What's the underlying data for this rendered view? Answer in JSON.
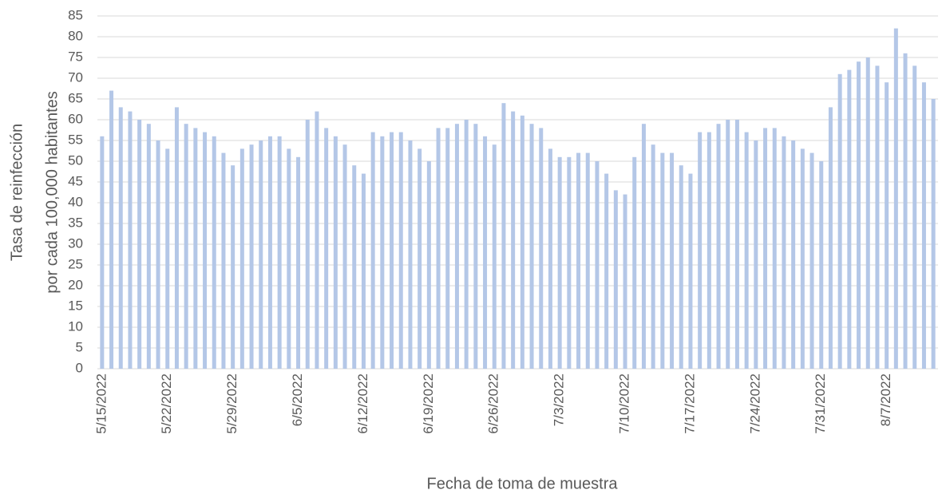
{
  "chart_data": {
    "type": "bar",
    "xlabel": "Fecha de toma de muestra",
    "ylabel": [
      "Tasa de reinfección",
      "por cada 100,000 habitantes"
    ],
    "categories": [
      "5/15/2022",
      null,
      null,
      null,
      null,
      null,
      null,
      "5/22/2022",
      null,
      null,
      null,
      null,
      null,
      null,
      "5/29/2022",
      null,
      null,
      null,
      null,
      null,
      null,
      "6/5/2022",
      null,
      null,
      null,
      null,
      null,
      null,
      "6/12/2022",
      null,
      null,
      null,
      null,
      null,
      null,
      "6/19/2022",
      null,
      null,
      null,
      null,
      null,
      null,
      "6/26/2022",
      null,
      null,
      null,
      null,
      null,
      null,
      "7/3/2022",
      null,
      null,
      null,
      null,
      null,
      null,
      "7/10/2022",
      null,
      null,
      null,
      null,
      null,
      null,
      "7/17/2022",
      null,
      null,
      null,
      null,
      null,
      null,
      "7/24/2022",
      null,
      null,
      null,
      null,
      null,
      null,
      "7/31/2022",
      null,
      null,
      null,
      null,
      null,
      null,
      "8/7/2022",
      null,
      null,
      null,
      null,
      null
    ],
    "values": [
      56,
      67,
      63,
      62,
      60,
      59,
      55,
      53,
      63,
      59,
      58,
      57,
      56,
      52,
      49,
      53,
      54,
      55,
      56,
      56,
      53,
      51,
      60,
      62,
      58,
      56,
      54,
      49,
      47,
      57,
      56,
      57,
      57,
      55,
      53,
      50,
      58,
      58,
      59,
      60,
      59,
      56,
      54,
      64,
      62,
      61,
      59,
      58,
      53,
      51,
      51,
      52,
      52,
      50,
      47,
      43,
      42,
      51,
      59,
      54,
      52,
      52,
      49,
      47,
      57,
      57,
      59,
      60,
      60,
      57,
      55,
      58,
      58,
      56,
      55,
      53,
      52,
      50,
      63,
      71,
      72,
      74,
      75,
      73,
      69,
      82,
      76,
      73,
      69,
      65
    ],
    "color": "#b4c7e7",
    "ylim": [
      0,
      85
    ],
    "yticks": [
      0,
      5,
      10,
      15,
      20,
      25,
      30,
      35,
      40,
      45,
      50,
      55,
      60,
      65,
      70,
      75,
      80,
      85
    ],
    "grid": true
  }
}
